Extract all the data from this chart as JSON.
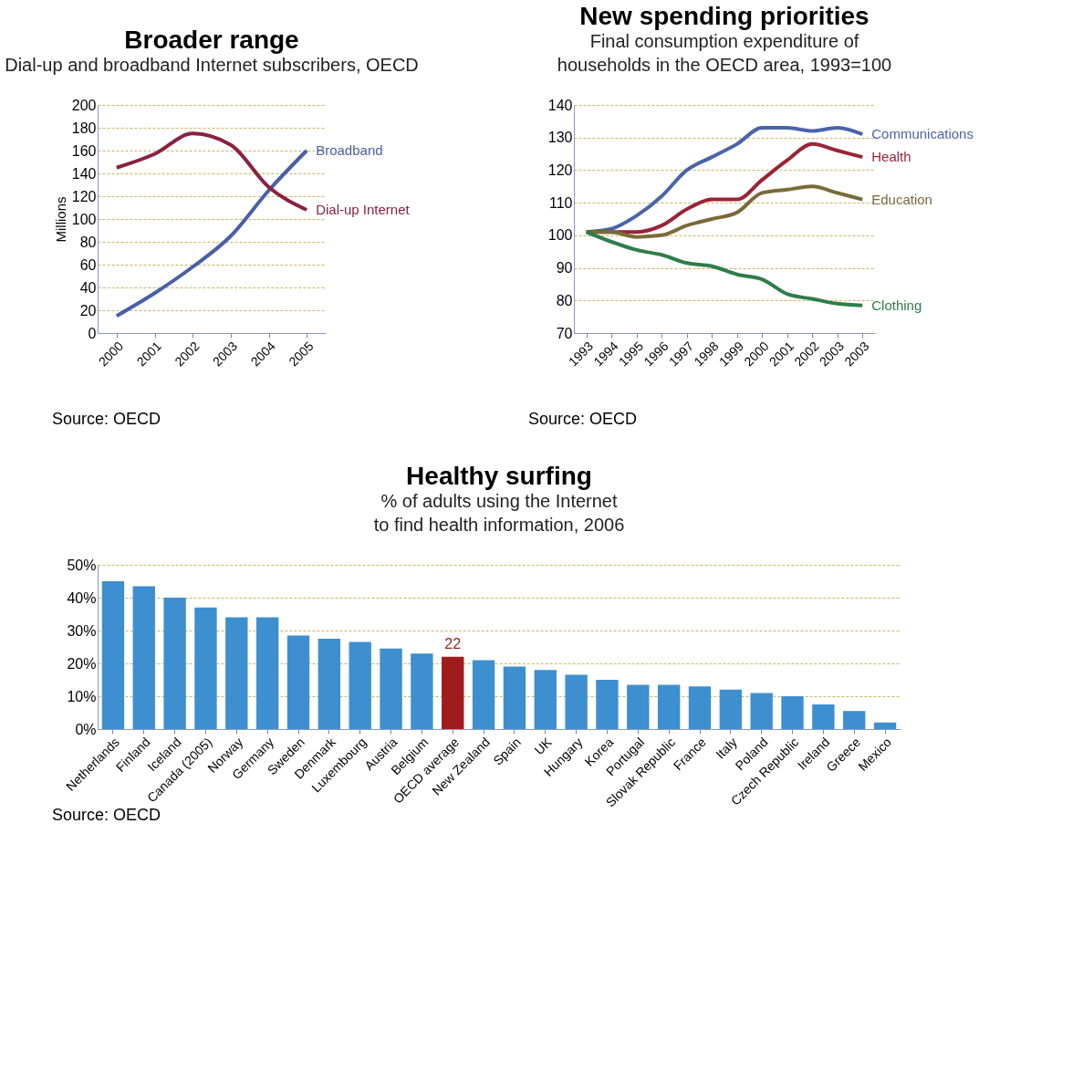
{
  "chart_data": [
    {
      "type": "line",
      "title": "Broader range",
      "subtitle": "Dial-up and broadband Internet subscribers, OECD",
      "ylabel": "Millions",
      "categories": [
        "2000",
        "2001",
        "2002",
        "2003",
        "2004",
        "2005"
      ],
      "series": [
        {
          "name": "Broadband",
          "color": "#4a5ea8",
          "values": [
            15,
            35,
            58,
            85,
            125,
            160
          ]
        },
        {
          "name": "Dial-up Internet",
          "color": "#8b2040",
          "values": [
            145,
            157,
            175,
            165,
            128,
            108
          ]
        }
      ],
      "ylim": [
        0,
        200
      ],
      "yticks": [
        0,
        20,
        40,
        60,
        80,
        100,
        120,
        140,
        160,
        180,
        200
      ],
      "grid": "y",
      "annotations": [
        "Source: OECD"
      ]
    },
    {
      "type": "line",
      "title": "New spending priorities",
      "subtitle": "Final consumption expenditure of households in the OECD area, 1993=100",
      "categories": [
        "1993",
        "1994",
        "1995",
        "1996",
        "1997",
        "1998",
        "1999",
        "2000",
        "2001",
        "2002",
        "2003",
        "2003"
      ],
      "series": [
        {
          "name": "Communications",
          "color": "#4a64a8",
          "values": [
            101,
            102,
            106,
            112,
            120,
            124,
            128,
            133,
            133,
            132,
            133,
            131
          ]
        },
        {
          "name": "Health",
          "color": "#9b2335",
          "values": [
            101,
            101,
            101,
            103,
            108,
            111,
            111,
            117,
            123,
            128,
            126,
            124
          ]
        },
        {
          "name": "Education",
          "color": "#7a6a3a",
          "values": [
            101,
            101,
            99.5,
            100,
            103,
            105,
            107,
            113,
            114,
            115,
            113,
            111
          ]
        },
        {
          "name": "Clothing",
          "color": "#2e7d4a",
          "values": [
            101,
            98,
            95.5,
            94,
            91.5,
            90.5,
            88,
            86.5,
            82,
            80.5,
            79,
            78.5
          ]
        }
      ],
      "ylim": [
        70,
        140
      ],
      "yticks": [
        70,
        80,
        90,
        100,
        110,
        120,
        130,
        140
      ],
      "grid": "y",
      "annotations": [
        "Source: OECD"
      ]
    },
    {
      "type": "bar",
      "title": "Healthy surfing",
      "subtitle": "% of adults using the Internet to find health information, 2006",
      "categories": [
        "Netherlands",
        "Finland",
        "Iceland",
        "Canada (2005)",
        "Norway",
        "Germany",
        "Sweden",
        "Denmark",
        "Luxembourg",
        "Austria",
        "Belgium",
        "OECD average",
        "New Zealand",
        "Spain",
        "UK",
        "Hungary",
        "Korea",
        "Portugal",
        "Slovak Republic",
        "France",
        "Italy",
        "Poland",
        "Czech Republic",
        "Ireland",
        "Greece",
        "Mexico"
      ],
      "values": [
        45,
        43.5,
        40,
        37,
        34,
        34,
        28.5,
        27.5,
        26.5,
        24.5,
        23,
        22,
        21,
        19,
        18,
        16.5,
        15,
        13.5,
        13.5,
        13,
        12,
        11,
        10,
        7.5,
        5.5,
        2
      ],
      "colors": [
        "#3d8fd0",
        "#3d8fd0",
        "#3d8fd0",
        "#3d8fd0",
        "#3d8fd0",
        "#3d8fd0",
        "#3d8fd0",
        "#3d8fd0",
        "#3d8fd0",
        "#3d8fd0",
        "#3d8fd0",
        "#a01c1c",
        "#3d8fd0",
        "#3d8fd0",
        "#3d8fd0",
        "#3d8fd0",
        "#3d8fd0",
        "#3d8fd0",
        "#3d8fd0",
        "#3d8fd0",
        "#3d8fd0",
        "#3d8fd0",
        "#3d8fd0",
        "#3d8fd0",
        "#3d8fd0",
        "#3d8fd0"
      ],
      "value_labels": [
        null,
        null,
        null,
        null,
        null,
        null,
        null,
        null,
        null,
        null,
        null,
        "22",
        null,
        null,
        null,
        null,
        null,
        null,
        null,
        null,
        null,
        null,
        null,
        null,
        null,
        null
      ],
      "ylim": [
        0,
        50
      ],
      "yticks": [
        {
          "value": 0,
          "label": "0%"
        },
        {
          "value": 10,
          "label": "10%"
        },
        {
          "value": 20,
          "label": "20%"
        },
        {
          "value": 30,
          "label": "30%"
        },
        {
          "value": 40,
          "label": "40%"
        },
        {
          "value": 50,
          "label": "50%"
        }
      ],
      "grid": "y",
      "annotations": [
        "Source: OECD"
      ]
    }
  ]
}
